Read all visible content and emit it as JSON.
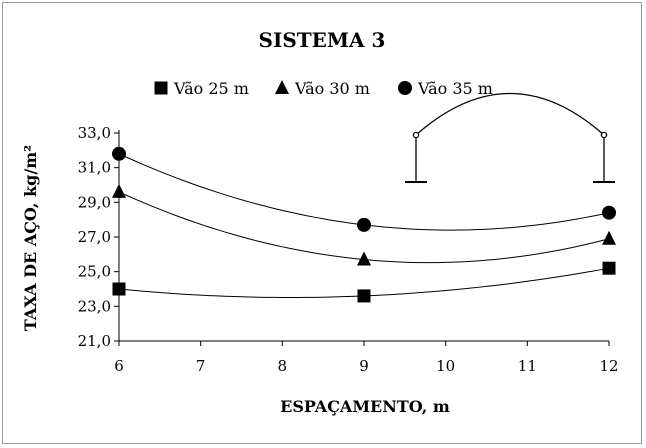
{
  "chart_data": {
    "type": "scatter",
    "title": "SISTEMA 3",
    "xlabel": "ESPAÇAMENTO, m",
    "ylabel": "TAXA DE AÇO, kg/m²",
    "xlim": [
      6,
      12
    ],
    "ylim": [
      21,
      33
    ],
    "xticks": [
      6,
      7,
      8,
      9,
      10,
      11,
      12
    ],
    "yticks": [
      21,
      23,
      25,
      27,
      29,
      31,
      33
    ],
    "ytick_labels": [
      "21,0",
      "23,0",
      "25,0",
      "27,0",
      "29,0",
      "31,0",
      "33,0"
    ],
    "grid": false,
    "legend_position": "top",
    "trendline": "polynomial (order 2)",
    "series": [
      {
        "name": "Vão 25 m",
        "marker": "square",
        "x": [
          6,
          9,
          12
        ],
        "y": [
          24.0,
          23.6,
          25.2
        ]
      },
      {
        "name": "Vão 30 m",
        "marker": "triangle",
        "x": [
          6,
          9,
          12
        ],
        "y": [
          29.6,
          25.7,
          26.9
        ]
      },
      {
        "name": "Vão 35 m",
        "marker": "circle",
        "x": [
          6,
          9,
          12
        ],
        "y": [
          31.8,
          27.7,
          28.4
        ]
      }
    ]
  },
  "colors": {
    "marker": "#000000",
    "line": "#000000",
    "axis": "#000000",
    "border": "#9a9a9a"
  }
}
